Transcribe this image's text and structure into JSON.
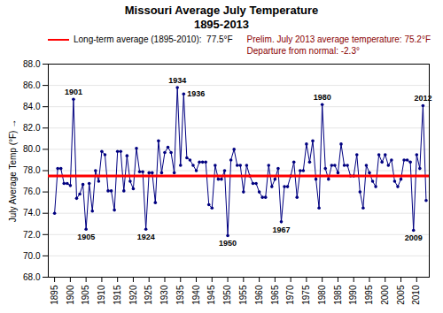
{
  "chart_data": {
    "type": "line",
    "title": "Missouri Average July Temperature\n1895-2013",
    "subtitle": "Prelim. July 2013 average temperature: 75.2°F\nDeparture from normal: -2.3°",
    "ylabel": "July Average Temp (°F)",
    "x": [
      1895,
      1896,
      1897,
      1898,
      1899,
      1900,
      1901,
      1902,
      1903,
      1904,
      1905,
      1906,
      1907,
      1908,
      1909,
      1910,
      1911,
      1912,
      1913,
      1914,
      1915,
      1916,
      1917,
      1918,
      1919,
      1920,
      1921,
      1922,
      1923,
      1924,
      1925,
      1926,
      1927,
      1928,
      1929,
      1930,
      1931,
      1932,
      1933,
      1934,
      1935,
      1936,
      1937,
      1938,
      1939,
      1940,
      1941,
      1942,
      1943,
      1944,
      1945,
      1946,
      1947,
      1948,
      1949,
      1950,
      1951,
      1952,
      1953,
      1954,
      1955,
      1956,
      1957,
      1958,
      1959,
      1960,
      1961,
      1962,
      1963,
      1964,
      1965,
      1966,
      1967,
      1968,
      1969,
      1970,
      1971,
      1972,
      1973,
      1974,
      1975,
      1976,
      1977,
      1978,
      1979,
      1980,
      1981,
      1982,
      1983,
      1984,
      1985,
      1986,
      1987,
      1988,
      1989,
      1990,
      1991,
      1992,
      1993,
      1994,
      1995,
      1996,
      1997,
      1998,
      1999,
      2000,
      2001,
      2002,
      2003,
      2004,
      2005,
      2006,
      2007,
      2008,
      2009,
      2010,
      2011,
      2012,
      2013
    ],
    "values": [
      74.0,
      78.2,
      78.2,
      76.8,
      76.8,
      76.6,
      84.7,
      75.4,
      75.8,
      76.7,
      72.5,
      76.8,
      74.2,
      78.0,
      77.0,
      79.8,
      79.5,
      76.1,
      76.1,
      74.3,
      79.8,
      79.8,
      76.1,
      79.4,
      77.0,
      76.3,
      80.1,
      77.9,
      77.9,
      72.5,
      77.8,
      77.8,
      75.0,
      80.8,
      77.8,
      79.7,
      80.2,
      79.7,
      77.8,
      85.8,
      78.5,
      85.2,
      79.2,
      79.0,
      78.5,
      78.0,
      78.8,
      78.8,
      78.8,
      74.8,
      74.5,
      78.5,
      77.2,
      77.2,
      78.0,
      71.9,
      79.0,
      80.0,
      78.5,
      78.5,
      76.0,
      78.5,
      77.5,
      76.8,
      76.8,
      76.0,
      75.5,
      75.5,
      78.5,
      76.5,
      77.2,
      78.2,
      73.2,
      76.5,
      76.5,
      77.5,
      78.8,
      75.5,
      78.0,
      78.0,
      80.5,
      78.8,
      80.8,
      77.2,
      74.5,
      84.2,
      78.2,
      77.2,
      78.5,
      78.5,
      77.8,
      80.5,
      78.5,
      78.5,
      77.5,
      77.5,
      79.5,
      76.0,
      74.5,
      78.5,
      77.8,
      77.0,
      76.5,
      79.5,
      78.8,
      79.5,
      78.5,
      79.0,
      77.0,
      76.5,
      77.2,
      79.0,
      79.0,
      78.8,
      72.4,
      79.5,
      78.2,
      84.1,
      75.2
    ],
    "color": "#000080",
    "marker": "circle",
    "reference_lines": [
      {
        "y": 77.5,
        "label": "Long-term average (1895-2010):  77.5°F",
        "color": "#FF0000"
      }
    ],
    "legend": "top-left",
    "annotations": [
      {
        "text": "1901",
        "x": 1901,
        "y": 84.7
      },
      {
        "text": "1905",
        "x": 1905,
        "y": 72.5
      },
      {
        "text": "1924",
        "x": 1924,
        "y": 72.5
      },
      {
        "text": "1934",
        "x": 1934,
        "y": 85.8
      },
      {
        "text": "1936",
        "x": 1936,
        "y": 85.2
      },
      {
        "text": "1950",
        "x": 1950,
        "y": 71.9
      },
      {
        "text": "1967",
        "x": 1967,
        "y": 73.2
      },
      {
        "text": "1980",
        "x": 1980,
        "y": 84.2
      },
      {
        "text": "2009",
        "x": 2009,
        "y": 72.4
      },
      {
        "text": "2012",
        "x": 2012,
        "y": 84.1
      }
    ],
    "xlim": [
      1893,
      2014
    ],
    "xticks": [
      1895,
      1900,
      1905,
      1910,
      1915,
      1920,
      1925,
      1930,
      1935,
      1940,
      1945,
      1950,
      1955,
      1960,
      1965,
      1970,
      1975,
      1980,
      1985,
      1990,
      1995,
      2000,
      2005,
      2010
    ],
    "ylim": [
      68.0,
      88.0
    ],
    "yticks": [
      {
        "value": 68.0,
        "label": "68.0"
      },
      {
        "value": 70.0,
        "label": "70.0"
      },
      {
        "value": 72.0,
        "label": "72.0"
      },
      {
        "value": 74.0,
        "label": "74.0"
      },
      {
        "value": 76.0,
        "label": "76.0"
      },
      {
        "value": 78.0,
        "label": "78.0"
      },
      {
        "value": 80.0,
        "label": "80.0"
      },
      {
        "value": 82.0,
        "label": "82.0"
      },
      {
        "value": 84.0,
        "label": "84.0"
      },
      {
        "value": 86.0,
        "label": "86.0"
      },
      {
        "value": 88.0,
        "label": "88.0"
      }
    ],
    "grid": "y"
  }
}
